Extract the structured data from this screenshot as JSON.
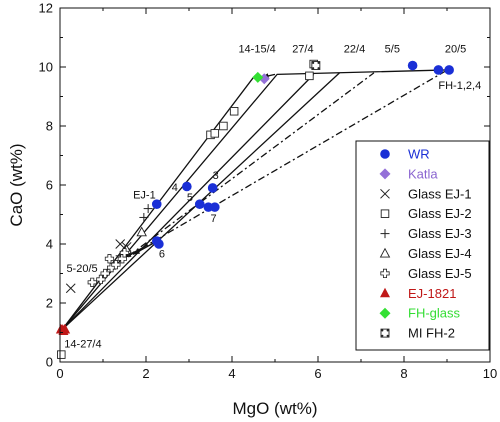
{
  "chart_data": {
    "type": "scatter",
    "xlabel": "MgO  (wt%)",
    "ylabel": "CaO  (wt%)",
    "xlim": [
      0,
      10
    ],
    "ylim": [
      0,
      12
    ],
    "x_ticks": [
      0,
      2,
      4,
      6,
      8,
      10
    ],
    "y_ticks": [
      0,
      2,
      4,
      6,
      8,
      10,
      12
    ],
    "series": [
      {
        "name": "WR",
        "marker": "circle",
        "color": "#1a2fd6",
        "label_color": "#1a2fd6",
        "points": [
          [
            2.25,
            5.35
          ],
          [
            2.95,
            5.95
          ],
          [
            3.25,
            5.35
          ],
          [
            3.55,
            5.9
          ],
          [
            3.45,
            5.25
          ],
          [
            3.6,
            5.25
          ],
          [
            2.25,
            4.1
          ],
          [
            2.3,
            4.0
          ],
          [
            8.2,
            10.05
          ],
          [
            8.8,
            9.9
          ],
          [
            9.05,
            9.9
          ]
        ]
      },
      {
        "name": "Katla",
        "marker": "diamond",
        "color": "#9470d8",
        "label_color": "#8a65d0",
        "points": [
          [
            4.75,
            9.6
          ]
        ]
      },
      {
        "name": "Glass EJ-1",
        "marker": "x",
        "color": "#222222",
        "label_color": "#111111",
        "points": [
          [
            0.25,
            2.5
          ],
          [
            1.4,
            4.0
          ],
          [
            1.55,
            3.9
          ]
        ]
      },
      {
        "name": "Glass EJ-2",
        "marker": "square",
        "color": "#222222",
        "label_color": "#111111",
        "points": [
          [
            0.03,
            0.25
          ],
          [
            3.5,
            7.7
          ],
          [
            3.6,
            7.75
          ],
          [
            3.8,
            8.0
          ],
          [
            4.05,
            8.5
          ],
          [
            5.8,
            9.7
          ],
          [
            5.9,
            10.1
          ]
        ]
      },
      {
        "name": "Glass EJ-3",
        "marker": "plus",
        "color": "#222222",
        "label_color": "#111111",
        "points": [
          [
            1.4,
            3.6
          ],
          [
            1.6,
            3.7
          ],
          [
            1.95,
            4.9
          ],
          [
            2.05,
            5.2
          ]
        ]
      },
      {
        "name": "Glass EJ-4",
        "marker": "triangle",
        "color": "#222222",
        "label_color": "#111111",
        "points": [
          [
            1.55,
            3.8
          ],
          [
            1.9,
            4.4
          ]
        ]
      },
      {
        "name": "Glass EJ-5",
        "marker": "cross",
        "color": "#222222",
        "label_color": "#111111",
        "points": [
          [
            0.75,
            2.7
          ],
          [
            0.95,
            2.8
          ],
          [
            1.05,
            3.0
          ],
          [
            1.15,
            3.5
          ],
          [
            1.2,
            3.2
          ],
          [
            1.3,
            3.3
          ],
          [
            1.45,
            3.5
          ],
          [
            1.5,
            3.7
          ]
        ]
      },
      {
        "name": "EJ-1821",
        "marker": "triangle-filled",
        "color": "#c01818",
        "label_color": "#c01818",
        "points": [
          [
            0.02,
            1.1
          ],
          [
            0.05,
            1.1
          ],
          [
            0.08,
            1.05
          ],
          [
            0.1,
            1.1
          ],
          [
            0.12,
            1.1
          ]
        ]
      },
      {
        "name": "FH-glass",
        "marker": "diamond",
        "color": "#33e033",
        "label_color": "#33dd33",
        "points": [
          [
            4.6,
            9.65
          ]
        ]
      },
      {
        "name": "MI FH-2",
        "marker": "square-dot",
        "color": "#222222",
        "label_color": "#111111",
        "points": [
          [
            5.95,
            10.05
          ]
        ]
      }
    ],
    "lines": [
      {
        "style": "solid",
        "x": [
          0.05,
          5.05,
          9.0
        ],
        "y": [
          1.1,
          9.75,
          9.9
        ]
      },
      {
        "style": "solid",
        "x": [
          0.05,
          4.5
        ],
        "y": [
          1.1,
          9.65
        ]
      },
      {
        "style": "solid",
        "x": [
          0.05,
          5.9
        ],
        "y": [
          1.1,
          9.75
        ]
      },
      {
        "style": "solid",
        "x": [
          0.05,
          6.5
        ],
        "y": [
          1.1,
          9.8
        ]
      },
      {
        "style": "dashdot",
        "x": [
          1.6,
          7.3
        ],
        "y": [
          3.6,
          9.8
        ]
      },
      {
        "style": "dashdot",
        "x": [
          1.6,
          8.95
        ],
        "y": [
          3.6,
          9.85
        ]
      }
    ],
    "arrows": [
      {
        "x": [
          5.0,
          4.7
        ],
        "y": [
          9.75,
          9.65
        ]
      },
      {
        "x": [
          1.9,
          1.5
        ],
        "y": [
          3.85,
          3.55
        ]
      },
      {
        "x": [
          2.2,
          1.7
        ],
        "y": [
          4.05,
          3.65
        ]
      }
    ],
    "annotations": [
      {
        "text": "14-15/4",
        "x": 4.15,
        "y": 10.5
      },
      {
        "text": "27/4",
        "x": 5.4,
        "y": 10.5
      },
      {
        "text": "22/4",
        "x": 6.6,
        "y": 10.5
      },
      {
        "text": "5/5",
        "x": 7.55,
        "y": 10.5
      },
      {
        "text": "20/5",
        "x": 8.95,
        "y": 10.5
      },
      {
        "text": "FH-1,2,4",
        "x": 8.8,
        "y": 9.25
      },
      {
        "text": "EJ-1",
        "x": 1.7,
        "y": 5.55
      },
      {
        "text": "4",
        "x": 2.6,
        "y": 5.8
      },
      {
        "text": "3",
        "x": 3.55,
        "y": 6.2
      },
      {
        "text": "5",
        "x": 2.95,
        "y": 5.45
      },
      {
        "text": "7",
        "x": 3.5,
        "y": 4.75
      },
      {
        "text": "6",
        "x": 2.3,
        "y": 3.55
      },
      {
        "text": "5-20/5",
        "x": 0.15,
        "y": 3.05
      },
      {
        "text": "14-27/4",
        "x": 0.1,
        "y": 0.5
      }
    ],
    "grid": false,
    "legend_placement": "right"
  }
}
